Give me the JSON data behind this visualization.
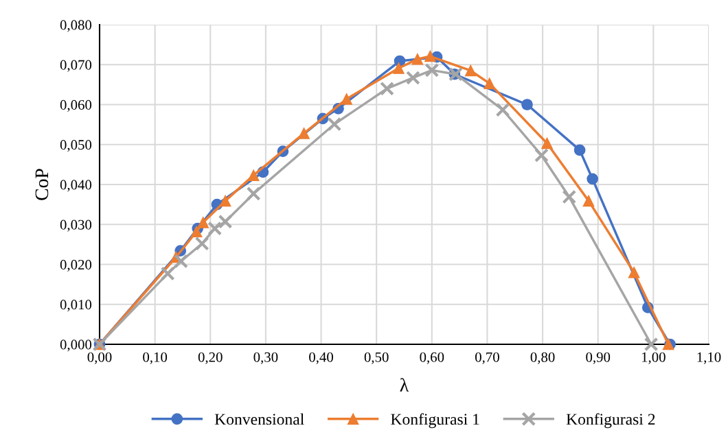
{
  "chart_data": {
    "type": "line",
    "xlabel": "λ",
    "ylabel": "CoP",
    "grid": true,
    "legend": "bottom",
    "xlim": [
      0,
      1.1
    ],
    "ylim": [
      0,
      0.08
    ],
    "xticks": [
      {
        "value": 0,
        "label": "0,00"
      },
      {
        "value": 0.1,
        "label": "0,10"
      },
      {
        "value": 0.2,
        "label": "0,20"
      },
      {
        "value": 0.3,
        "label": "0,30"
      },
      {
        "value": 0.4,
        "label": "0,40"
      },
      {
        "value": 0.5,
        "label": "0,50"
      },
      {
        "value": 0.6,
        "label": "0,60"
      },
      {
        "value": 0.7,
        "label": "0,70"
      },
      {
        "value": 0.8,
        "label": "0,80"
      },
      {
        "value": 0.9,
        "label": "0,90"
      },
      {
        "value": 1.0,
        "label": "1,00"
      },
      {
        "value": 1.1,
        "label": "1,10"
      }
    ],
    "yticks": [
      {
        "value": 0,
        "label": "0,000"
      },
      {
        "value": 0.01,
        "label": "0,010"
      },
      {
        "value": 0.02,
        "label": "0,020"
      },
      {
        "value": 0.03,
        "label": "0,030"
      },
      {
        "value": 0.04,
        "label": "0,040"
      },
      {
        "value": 0.05,
        "label": "0,050"
      },
      {
        "value": 0.06,
        "label": "0,060"
      },
      {
        "value": 0.07,
        "label": "0,070"
      },
      {
        "value": 0.08,
        "label": "0,080"
      }
    ],
    "series": [
      {
        "name": "Konvensional",
        "color": "#4472c4",
        "marker": "circle",
        "x": [
          0,
          0.146,
          0.177,
          0.212,
          0.295,
          0.331,
          0.403,
          0.431,
          0.542,
          0.609,
          0.641,
          0.772,
          0.867,
          0.89,
          0.99,
          1.03
        ],
        "values": [
          0,
          0.0234,
          0.029,
          0.035,
          0.0431,
          0.0483,
          0.0565,
          0.059,
          0.0709,
          0.0719,
          0.0676,
          0.06,
          0.0486,
          0.0414,
          0.0092,
          0
        ]
      },
      {
        "name": "Konfigurasi 1",
        "color": "#ed7d31",
        "marker": "triangle",
        "x": [
          0,
          0.138,
          0.175,
          0.187,
          0.227,
          0.278,
          0.369,
          0.446,
          0.54,
          0.574,
          0.597,
          0.67,
          0.704,
          0.808,
          0.883,
          0.965,
          1.027
        ],
        "values": [
          0,
          0.0218,
          0.0282,
          0.0305,
          0.0359,
          0.0423,
          0.0528,
          0.0614,
          0.0691,
          0.0714,
          0.0721,
          0.0685,
          0.0653,
          0.0503,
          0.0359,
          0.018,
          0
        ]
      },
      {
        "name": "Konfigurasi 2",
        "color": "#a5a5a5",
        "marker": "cross",
        "x": [
          0,
          0.123,
          0.147,
          0.185,
          0.208,
          0.227,
          0.278,
          0.424,
          0.519,
          0.566,
          0.6,
          0.643,
          0.728,
          0.798,
          0.848,
          0.996
        ],
        "values": [
          0,
          0.0177,
          0.0208,
          0.0252,
          0.029,
          0.0307,
          0.0377,
          0.0551,
          0.064,
          0.0667,
          0.0686,
          0.0676,
          0.0587,
          0.0473,
          0.0369,
          0
        ]
      }
    ]
  }
}
